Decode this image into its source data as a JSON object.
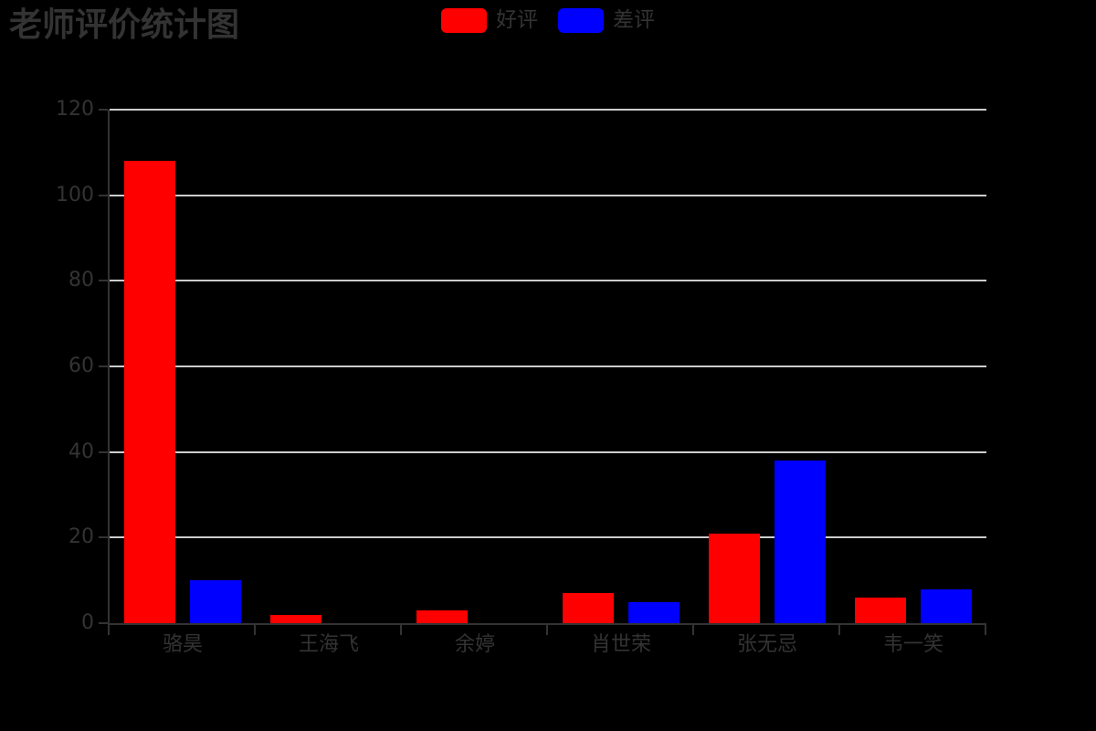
{
  "page": {
    "background": "#000000"
  },
  "title": {
    "text": "老师评价统计图",
    "color": "#333333"
  },
  "legend": {
    "items": [
      {
        "label": "好评",
        "color": "#ff0000"
      },
      {
        "label": "差评",
        "color": "#0000ff"
      }
    ],
    "text_color": "#333333",
    "position": "top-center"
  },
  "chart_data": {
    "type": "bar",
    "title": "老师评价统计图",
    "categories": [
      "骆昊",
      "王海飞",
      "余婷",
      "肖世荣",
      "张无忌",
      "韦一笑"
    ],
    "series": [
      {
        "name": "好评",
        "color": "#ff0000",
        "values": [
          108,
          2,
          3,
          7,
          21,
          6
        ]
      },
      {
        "name": "差评",
        "color": "#0000ff",
        "values": [
          10,
          0,
          0,
          5,
          38,
          8
        ]
      }
    ],
    "xlabel": "",
    "ylabel": "",
    "ylim": [
      0,
      120
    ],
    "yticks": [
      0,
      20,
      40,
      60,
      80,
      100,
      120
    ],
    "grid": true,
    "grid_color": "#cccccc",
    "axis_color": "#333333",
    "label_color": "#333333",
    "legend_position": "top-center",
    "background": "#000000"
  }
}
